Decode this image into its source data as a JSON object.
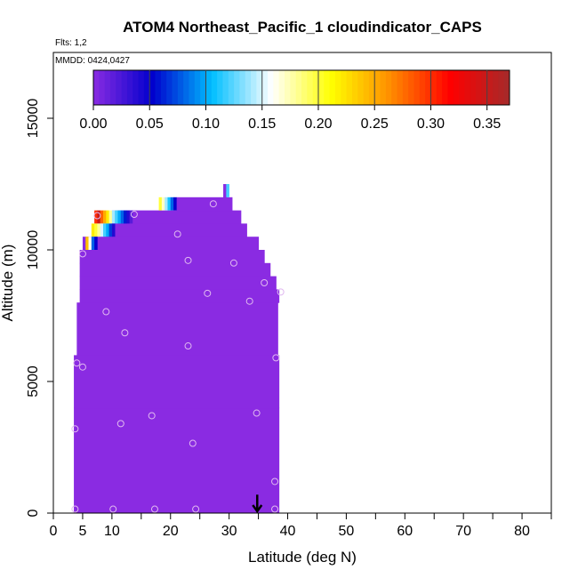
{
  "chart_data": {
    "type": "heatmap",
    "title": "ATOM4 Northeast_Pacific_1 cloudindicator_CAPS",
    "flights_label": "Flts: 1,2",
    "dates_label": "MMDD: 0424,0427",
    "xlabel": "Latitude (deg N)",
    "ylabel": "Altitude (m)",
    "xlim": [
      0,
      85
    ],
    "ylim": [
      0,
      17500
    ],
    "x_ticks": [
      0,
      5,
      10,
      20,
      30,
      40,
      50,
      60,
      70,
      80
    ],
    "x_tick_labels": [
      "0",
      "5",
      "10",
      "20",
      "30",
      "40",
      "50",
      "60",
      "70",
      "80"
    ],
    "x_minor_ticks": [
      15,
      25,
      35,
      45,
      55,
      65,
      75,
      85
    ],
    "y_ticks": [
      0,
      5000,
      10000,
      15000
    ],
    "y_tick_labels": [
      "0",
      "5000",
      "10000",
      "15000"
    ],
    "grid": false,
    "legend": "colorbar at top",
    "colorbar": {
      "min": 0,
      "max": 0.37,
      "ticks": [
        0,
        0.05,
        0.1,
        0.15,
        0.2,
        0.25,
        0.3,
        0.35
      ],
      "tick_labels": [
        "0.00",
        "0.05",
        "0.10",
        "0.15",
        "0.20",
        "0.25",
        "0.30",
        "0.35"
      ],
      "colors": [
        "#8a2be2",
        "#0000cd",
        "#00bfff",
        "#ffffff",
        "#ffff00",
        "#ff8c00",
        "#ff0000",
        "#a52a2a"
      ]
    },
    "cells_value0": [
      {
        "x0": 3.5,
        "x1": 38.5,
        "y0": 0,
        "y1": 4000
      },
      {
        "x0": 3.5,
        "x1": 38.5,
        "y0": 4000,
        "y1": 6000
      },
      {
        "x0": 4,
        "x1": 38.3,
        "y0": 6000,
        "y1": 8000
      },
      {
        "x0": 4.5,
        "x1": 38.5,
        "y0": 8000,
        "y1": 8500
      },
      {
        "x0": 4.5,
        "x1": 38,
        "y0": 8500,
        "y1": 9000
      },
      {
        "x0": 4.5,
        "x1": 37,
        "y0": 9000,
        "y1": 9500
      },
      {
        "x0": 4.5,
        "x1": 36,
        "y0": 9500,
        "y1": 10000
      },
      {
        "x0": 5,
        "x1": 35,
        "y0": 10000,
        "y1": 10500
      },
      {
        "x0": 7,
        "x1": 33,
        "y0": 10500,
        "y1": 11000
      },
      {
        "x0": 10,
        "x1": 32,
        "y0": 11000,
        "y1": 11500
      },
      {
        "x0": 21,
        "x1": 30.5,
        "y0": 11500,
        "y1": 12000
      },
      {
        "x0": 29,
        "x1": 29.6,
        "y0": 12000,
        "y1": 12500
      }
    ],
    "cells_colored": [
      {
        "x": 7.0,
        "y0": 11000,
        "y1": 11500,
        "value": 0.3
      },
      {
        "x": 7.5,
        "y0": 11000,
        "y1": 11500,
        "value": 0.35
      },
      {
        "x": 8.0,
        "y0": 11000,
        "y1": 11500,
        "value": 0.28
      },
      {
        "x": 8.5,
        "y0": 11000,
        "y1": 11500,
        "value": 0.25
      },
      {
        "x": 9.0,
        "y0": 11000,
        "y1": 11500,
        "value": 0.22
      },
      {
        "x": 9.5,
        "y0": 11000,
        "y1": 11500,
        "value": 0.18
      },
      {
        "x": 10.0,
        "y0": 11000,
        "y1": 11500,
        "value": 0.14
      },
      {
        "x": 10.5,
        "y0": 11000,
        "y1": 11500,
        "value": 0.12
      },
      {
        "x": 11.0,
        "y0": 11000,
        "y1": 11500,
        "value": 0.1
      },
      {
        "x": 11.5,
        "y0": 11000,
        "y1": 11500,
        "value": 0.08
      },
      {
        "x": 12.0,
        "y0": 11000,
        "y1": 11500,
        "value": 0.06
      },
      {
        "x": 12.5,
        "y0": 11000,
        "y1": 11500,
        "value": 0.04
      },
      {
        "x": 13.0,
        "y0": 11000,
        "y1": 11500,
        "value": 0.02
      },
      {
        "x": 6.5,
        "y0": 10500,
        "y1": 11000,
        "value": 0.22
      },
      {
        "x": 7.0,
        "y0": 10500,
        "y1": 11000,
        "value": 0.2
      },
      {
        "x": 7.5,
        "y0": 10500,
        "y1": 11000,
        "value": 0.18
      },
      {
        "x": 8.0,
        "y0": 10500,
        "y1": 11000,
        "value": 0.15
      },
      {
        "x": 8.5,
        "y0": 10500,
        "y1": 11000,
        "value": 0.12
      },
      {
        "x": 9.0,
        "y0": 10500,
        "y1": 11000,
        "value": 0.1
      },
      {
        "x": 9.5,
        "y0": 10500,
        "y1": 11000,
        "value": 0.07
      },
      {
        "x": 10.0,
        "y0": 10500,
        "y1": 11000,
        "value": 0.04
      },
      {
        "x": 5.5,
        "y0": 10000,
        "y1": 10500,
        "value": 0.24
      },
      {
        "x": 6.0,
        "y0": 10000,
        "y1": 10500,
        "value": 0.16
      },
      {
        "x": 6.5,
        "y0": 10000,
        "y1": 10500,
        "value": 0.08
      },
      {
        "x": 7.0,
        "y0": 10000,
        "y1": 10500,
        "value": 0.05
      },
      {
        "x": 18.0,
        "y0": 11500,
        "y1": 12000,
        "value": 0.2
      },
      {
        "x": 18.5,
        "y0": 11500,
        "y1": 12000,
        "value": 0.17
      },
      {
        "x": 19.0,
        "y0": 11500,
        "y1": 12000,
        "value": 0.14
      },
      {
        "x": 19.5,
        "y0": 11500,
        "y1": 12000,
        "value": 0.11
      },
      {
        "x": 20.0,
        "y0": 11500,
        "y1": 12000,
        "value": 0.08
      },
      {
        "x": 20.5,
        "y0": 11500,
        "y1": 12000,
        "value": 0.05
      },
      {
        "x": 29.5,
        "y0": 12000,
        "y1": 12500,
        "value": 0.12
      }
    ],
    "sample_points": [
      [
        3.7,
        150
      ],
      [
        10.2,
        150
      ],
      [
        17.3,
        150
      ],
      [
        24.3,
        150
      ],
      [
        37.8,
        150
      ],
      [
        37.8,
        1200
      ],
      [
        3.7,
        3200
      ],
      [
        11.5,
        3400
      ],
      [
        16.8,
        3700
      ],
      [
        23.8,
        2650
      ],
      [
        34.7,
        3800
      ],
      [
        4.0,
        5700
      ],
      [
        5.0,
        5550
      ],
      [
        38.0,
        5900
      ],
      [
        23.0,
        6350
      ],
      [
        12.2,
        6850
      ],
      [
        9.0,
        7650
      ],
      [
        33.5,
        8050
      ],
      [
        26.3,
        8350
      ],
      [
        36.0,
        8750
      ],
      [
        38.8,
        8400
      ],
      [
        5.0,
        9850
      ],
      [
        23.0,
        9600
      ],
      [
        30.8,
        9500
      ],
      [
        21.2,
        10600
      ],
      [
        7.5,
        11300
      ],
      [
        13.8,
        11350
      ],
      [
        27.3,
        11750
      ]
    ],
    "sample_point_color": "#e0b8f0",
    "marker": {
      "x": 34.8,
      "y0": 700,
      "y1": 0
    }
  }
}
